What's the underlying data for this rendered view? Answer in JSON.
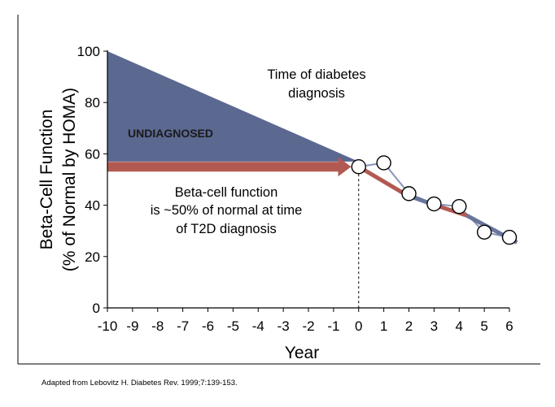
{
  "chart_data": {
    "type": "line",
    "xlabel": "Year",
    "ylabel_line1": "Beta-Cell Function",
    "ylabel_line2": "(% of Normal by HOMA)",
    "xlim": [
      -10,
      6
    ],
    "ylim": [
      0,
      100
    ],
    "x_ticks": [
      -10,
      -9,
      -8,
      -7,
      -6,
      -5,
      -4,
      -3,
      -2,
      -1,
      0,
      1,
      2,
      3,
      4,
      5,
      6
    ],
    "y_ticks": [
      0,
      20,
      40,
      60,
      80,
      100
    ],
    "undiagnosed_area": {
      "label": "UNDIAGNOSED",
      "x": [
        -10,
        0
      ],
      "y_top": [
        100,
        57
      ],
      "y_bottom": [
        57,
        57
      ]
    },
    "series": [
      {
        "x": [
          0,
          1,
          2,
          3,
          4,
          5,
          6
        ],
        "values": [
          55,
          56.5,
          44.5,
          40.5,
          39.5,
          29.5,
          27.5
        ]
      }
    ],
    "trend_segments": [
      {
        "x": [
          0,
          1.9
        ],
        "y": [
          55,
          44
        ],
        "color": "#b25a52"
      },
      {
        "x": [
          1.9,
          2.9
        ],
        "y": [
          44,
          40.5
        ],
        "color": "#6a759c"
      },
      {
        "x": [
          2.9,
          4.3
        ],
        "y": [
          40.5,
          36
        ],
        "color": "#b25a52"
      },
      {
        "x": [
          4.3,
          6.3
        ],
        "y": [
          36,
          25.5
        ],
        "color": "#6a759c"
      }
    ],
    "arrow": {
      "x": [
        -10,
        -0.3
      ],
      "y": [
        55,
        55
      ],
      "color": "#b25a52"
    },
    "diagnosis_line_x": 0,
    "annotations": {
      "diagnosis_line1": "Time of diabetes",
      "diagnosis_line2": "diagnosis",
      "beta_line1": "Beta-cell function",
      "beta_line2": "is ~50% of normal at time",
      "beta_line3": "of T2D diagnosis"
    },
    "colors": {
      "area": "#5b6890",
      "arrow": "#b25a52",
      "marker_fill": "#ffffff",
      "marker_stroke": "#000000",
      "data_line": "#8a95b8"
    }
  },
  "footnote": "Adapted from Lebovitz H. Diabetes Rev. 1999;7:139-153."
}
